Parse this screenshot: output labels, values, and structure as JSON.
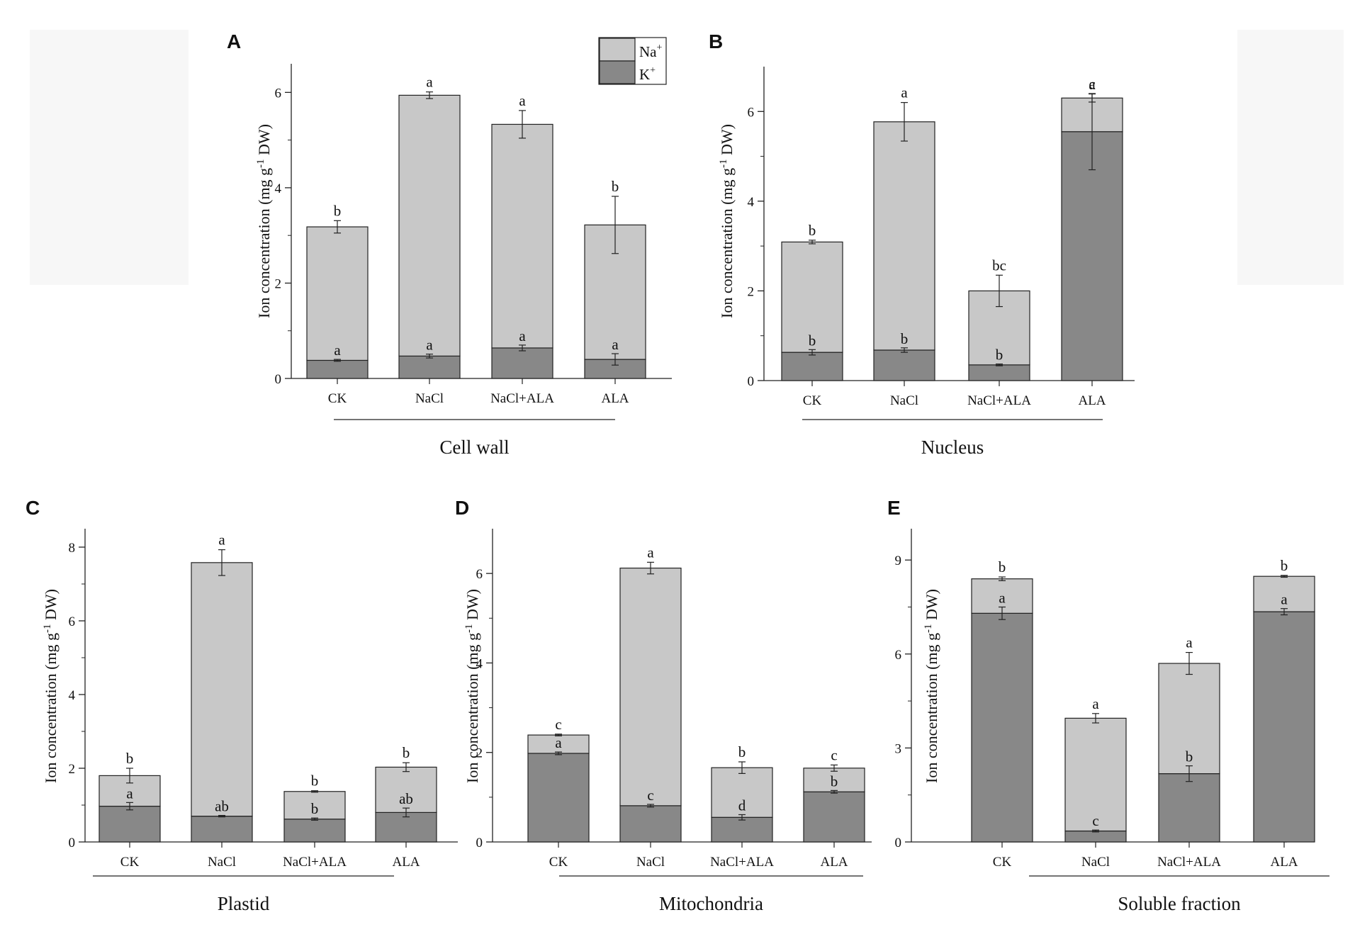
{
  "figure": {
    "legend": {
      "na_label": "Na",
      "na_sup": "+",
      "k_label": "K",
      "k_sup": "+"
    }
  },
  "colors": {
    "na": "#c8c8c8",
    "k": "#888888",
    "stroke": "#222222",
    "background_box": "#f7f7f7"
  },
  "chart_data": [
    {
      "type": "bar",
      "stacked": true,
      "panel": "A",
      "title": "",
      "group_label": "Cell wall",
      "ylabel_pre": "Ion concentration (mg g",
      "ylabel_sup": "-1",
      "ylabel_post": " DW)",
      "xlabel": "",
      "categories": [
        "CK",
        "NaCl",
        "NaCl+ALA",
        "ALA"
      ],
      "ylim": [
        0,
        6.6
      ],
      "yticks": [
        0,
        2,
        4,
        6
      ],
      "series": [
        {
          "name": "K+",
          "values": [
            0.38,
            0.47,
            0.64,
            0.4
          ],
          "err": [
            0.02,
            0.04,
            0.06,
            0.12
          ],
          "letters": [
            "a",
            "a",
            "a",
            "a"
          ]
        },
        {
          "name": "Na+",
          "values": [
            2.8,
            5.47,
            4.69,
            2.82
          ],
          "err": [
            0.13,
            0.07,
            0.29,
            0.6
          ],
          "letters": [
            "b",
            "a",
            "a",
            "b"
          ]
        }
      ]
    },
    {
      "type": "bar",
      "stacked": true,
      "panel": "B",
      "title": "",
      "group_label": "Nucleus",
      "ylabel_pre": "Ion concentration (mg g",
      "ylabel_sup": "-1",
      "ylabel_post": " DW)",
      "xlabel": "",
      "categories": [
        "CK",
        "NaCl",
        "NaCl+ALA",
        "ALA"
      ],
      "ylim": [
        0,
        7
      ],
      "yticks": [
        0,
        2,
        4,
        6
      ],
      "series": [
        {
          "name": "K+",
          "values": [
            0.63,
            0.68,
            0.35,
            5.55
          ],
          "err": [
            0.06,
            0.05,
            0.02,
            0.85
          ],
          "letters": [
            "b",
            "b",
            "b",
            "a"
          ]
        },
        {
          "name": "Na+",
          "values": [
            2.46,
            5.09,
            1.65,
            0.75
          ],
          "err": [
            0.04,
            0.43,
            0.35,
            0.09
          ],
          "letters": [
            "b",
            "a",
            "bc",
            "c"
          ]
        }
      ]
    },
    {
      "type": "bar",
      "stacked": true,
      "panel": "C",
      "title": "",
      "group_label": "Plastid",
      "ylabel_pre": "Ion concentration (mg g",
      "ylabel_sup": "-1",
      "ylabel_post": " DW)",
      "xlabel": "",
      "categories": [
        "CK",
        "NaCl",
        "NaCl+ALA",
        "ALA"
      ],
      "ylim": [
        0,
        8.5
      ],
      "yticks": [
        0,
        2,
        4,
        6,
        8
      ],
      "series": [
        {
          "name": "K+",
          "values": [
            0.97,
            0.7,
            0.62,
            0.8
          ],
          "err": [
            0.1,
            0.02,
            0.03,
            0.12
          ],
          "letters": [
            "a",
            "ab",
            "b",
            "ab"
          ]
        },
        {
          "name": "Na+",
          "values": [
            0.83,
            6.88,
            0.75,
            1.23
          ],
          "err": [
            0.2,
            0.35,
            0.02,
            0.12
          ],
          "letters": [
            "b",
            "a",
            "b",
            "b"
          ]
        }
      ]
    },
    {
      "type": "bar",
      "stacked": true,
      "panel": "D",
      "title": "",
      "group_label": "Mitochondria",
      "ylabel_pre": "Ion concentration (mg g",
      "ylabel_sup": "-1",
      "ylabel_post": " DW)",
      "xlabel": "",
      "categories": [
        "CK",
        "NaCl",
        "NaCl+ALA",
        "ALA"
      ],
      "ylim": [
        0,
        7
      ],
      "yticks": [
        0,
        2,
        4,
        6
      ],
      "series": [
        {
          "name": "K+",
          "values": [
            1.98,
            0.81,
            0.55,
            1.12
          ],
          "err": [
            0.03,
            0.03,
            0.06,
            0.03
          ],
          "letters": [
            "a",
            "c",
            "d",
            "b"
          ]
        },
        {
          "name": "Na+",
          "values": [
            0.41,
            5.31,
            1.11,
            0.53
          ],
          "err": [
            0.02,
            0.13,
            0.13,
            0.07
          ],
          "letters": [
            "c",
            "a",
            "b",
            "c"
          ]
        }
      ]
    },
    {
      "type": "bar",
      "stacked": true,
      "panel": "E",
      "title": "",
      "group_label": "Soluble fraction",
      "ylabel_pre": "Ion concentration (mg g",
      "ylabel_sup": "-1",
      "ylabel_post": " DW)",
      "xlabel": "",
      "categories": [
        "CK",
        "NaCl",
        "NaCl+ALA",
        "ALA"
      ],
      "ylim": [
        0,
        10
      ],
      "yticks": [
        0,
        3,
        6,
        9
      ],
      "series": [
        {
          "name": "K+",
          "values": [
            7.3,
            0.35,
            2.18,
            7.35
          ],
          "err": [
            0.2,
            0.03,
            0.25,
            0.1
          ],
          "letters": [
            "a",
            "c",
            "b",
            "a"
          ]
        },
        {
          "name": "Na+",
          "values": [
            1.1,
            3.6,
            3.52,
            1.13
          ],
          "err": [
            0.06,
            0.15,
            0.35,
            0.03
          ],
          "letters": [
            "b",
            "a",
            "a",
            "b"
          ]
        }
      ]
    }
  ]
}
